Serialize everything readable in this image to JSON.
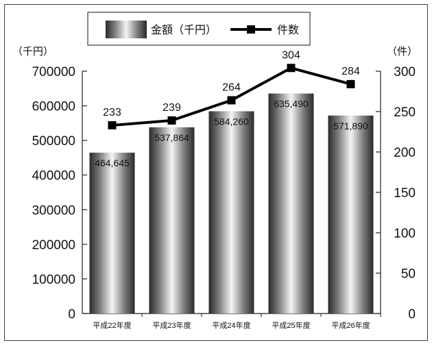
{
  "chart_data": {
    "type": "bar",
    "categories": [
      "平成22年度",
      "平成23年度",
      "平成24年度",
      "平成25年度",
      "平成26年度"
    ],
    "series": [
      {
        "name": "金額（千円）",
        "type": "bar",
        "axis": "left",
        "values": [
          464645,
          537864,
          584260,
          635490,
          571890
        ],
        "labels": [
          "464,645",
          "537,864",
          "584,260",
          "635,490",
          "571,890"
        ]
      },
      {
        "name": "件数",
        "type": "line",
        "axis": "right",
        "values": [
          233,
          239,
          264,
          304,
          284
        ],
        "labels": [
          "233",
          "239",
          "264",
          "304",
          "284"
        ]
      }
    ],
    "y_left": {
      "unit_label": "（千円）",
      "range": [
        0,
        700000
      ],
      "ticks": [
        "0",
        "100000",
        "200000",
        "300000",
        "400000",
        "500000",
        "600000",
        "700000"
      ]
    },
    "y_right": {
      "unit_label": "（件）",
      "range": [
        0,
        300
      ],
      "ticks": [
        "0",
        "50",
        "100",
        "150",
        "200",
        "250",
        "300"
      ]
    },
    "legend": {
      "placement": "top-center",
      "items": [
        {
          "label": "金額（千円）",
          "symbol": "gradient-bar-swatch"
        },
        {
          "label": "件数",
          "symbol": "line-square-marker"
        }
      ]
    },
    "grid": false,
    "colors": {
      "line": "#000000",
      "bar_dark": "#2a2a2a",
      "bar_light": "#f2f2f2",
      "frame": "#3a3a3a"
    }
  }
}
